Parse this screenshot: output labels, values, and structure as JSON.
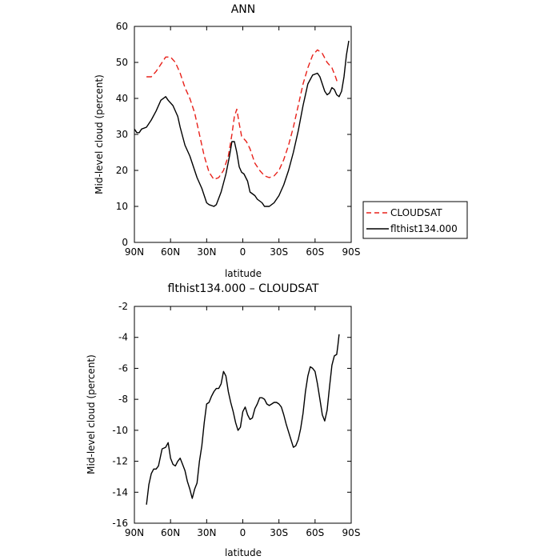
{
  "chart_data": [
    {
      "type": "line",
      "title": "ANN",
      "xlabel": "latitude",
      "ylabel": "Mid-level cloud (percent)",
      "xlim": [
        90,
        -90
      ],
      "ylim": [
        0,
        60
      ],
      "x_ticks": [
        90,
        60,
        30,
        0,
        -30,
        -60,
        -90
      ],
      "x_tick_labels": [
        "90N",
        "60N",
        "30N",
        "0",
        "30S",
        "60S",
        "90S"
      ],
      "y_ticks": [
        0,
        10,
        20,
        30,
        40,
        50,
        60
      ],
      "y_tick_labels": [
        "0",
        "10",
        "20",
        "30",
        "40",
        "50",
        "60"
      ],
      "legend_placement": "right",
      "series": [
        {
          "name": "CLOUDSAT",
          "color": "#e8211a",
          "dash": "dashed",
          "points": [
            [
              80,
              46
            ],
            [
              76,
              46
            ],
            [
              72,
              47.5
            ],
            [
              68,
              49.5
            ],
            [
              64,
              51.5
            ],
            [
              60,
              51.5
            ],
            [
              56,
              50
            ],
            [
              52,
              47
            ],
            [
              48,
              43
            ],
            [
              44,
              40
            ],
            [
              40,
              36
            ],
            [
              36,
              30
            ],
            [
              32,
              24
            ],
            [
              28,
              19.5
            ],
            [
              24,
              17.5
            ],
            [
              20,
              18
            ],
            [
              16,
              20
            ],
            [
              12,
              24
            ],
            [
              9,
              30
            ],
            [
              7,
              35
            ],
            [
              5,
              37
            ],
            [
              3,
              33
            ],
            [
              1,
              29.5
            ],
            [
              -3,
              28
            ],
            [
              -6,
              26
            ],
            [
              -10,
              22
            ],
            [
              -14,
              20
            ],
            [
              -18,
              18.5
            ],
            [
              -22,
              18
            ],
            [
              -26,
              18.5
            ],
            [
              -30,
              20
            ],
            [
              -34,
              23
            ],
            [
              -38,
              27
            ],
            [
              -42,
              32
            ],
            [
              -46,
              38
            ],
            [
              -50,
              44
            ],
            [
              -54,
              48.5
            ],
            [
              -58,
              52
            ],
            [
              -62,
              53.5
            ],
            [
              -66,
              52.5
            ],
            [
              -70,
              50
            ],
            [
              -74,
              48.5
            ],
            [
              -77,
              46
            ],
            [
              -79,
              44
            ]
          ]
        },
        {
          "name": "flthist134.000",
          "color": "#000000",
          "dash": "solid",
          "points": [
            [
              90,
              31.5
            ],
            [
              88,
              30.5
            ],
            [
              86,
              30.5
            ],
            [
              84,
              31.5
            ],
            [
              80,
              32
            ],
            [
              76,
              34
            ],
            [
              72,
              36.5
            ],
            [
              68,
              39.5
            ],
            [
              64,
              40.5
            ],
            [
              62,
              39.5
            ],
            [
              58,
              38
            ],
            [
              54,
              35
            ],
            [
              52,
              32
            ],
            [
              48,
              27
            ],
            [
              44,
              24
            ],
            [
              40,
              20
            ],
            [
              38,
              18
            ],
            [
              34,
              15
            ],
            [
              32,
              13
            ],
            [
              30,
              11
            ],
            [
              28,
              10.5
            ],
            [
              24,
              10
            ],
            [
              22,
              10.5
            ],
            [
              18,
              14
            ],
            [
              14,
              19
            ],
            [
              11,
              24
            ],
            [
              9,
              28
            ],
            [
              7,
              28
            ],
            [
              5,
              25
            ],
            [
              3,
              21
            ],
            [
              1,
              19.5
            ],
            [
              -1,
              19
            ],
            [
              -4,
              17
            ],
            [
              -6,
              14
            ],
            [
              -10,
              13
            ],
            [
              -12,
              12
            ],
            [
              -16,
              11
            ],
            [
              -18,
              10
            ],
            [
              -22,
              10
            ],
            [
              -26,
              11
            ],
            [
              -30,
              13
            ],
            [
              -34,
              16
            ],
            [
              -38,
              20
            ],
            [
              -42,
              25
            ],
            [
              -46,
              31
            ],
            [
              -50,
              38
            ],
            [
              -54,
              44
            ],
            [
              -58,
              46.5
            ],
            [
              -62,
              47
            ],
            [
              -64,
              46
            ],
            [
              -66,
              44
            ],
            [
              -68,
              42
            ],
            [
              -70,
              41
            ],
            [
              -72,
              41.5
            ],
            [
              -74,
              43
            ],
            [
              -76,
              42.5
            ],
            [
              -78,
              41
            ],
            [
              -80,
              40.5
            ],
            [
              -82,
              42
            ],
            [
              -84,
              46
            ],
            [
              -86,
              52
            ],
            [
              -88,
              56
            ]
          ]
        }
      ]
    },
    {
      "type": "line",
      "title": "flthist134.000 – CLOUDSAT",
      "xlabel": "latitude",
      "ylabel": "Mid-level cloud (percent)",
      "xlim": [
        90,
        -90
      ],
      "ylim": [
        -16,
        -2
      ],
      "x_ticks": [
        90,
        60,
        30,
        0,
        -30,
        -60,
        -90
      ],
      "x_tick_labels": [
        "90N",
        "60N",
        "30N",
        "0",
        "30S",
        "60S",
        "90S"
      ],
      "y_ticks": [
        -16,
        -14,
        -12,
        -10,
        -8,
        -6,
        -4,
        -2
      ],
      "y_tick_labels": [
        "-16",
        "-14",
        "-12",
        "-10",
        "-8",
        "-6",
        "-4",
        "-2"
      ],
      "series": [
        {
          "name": "",
          "color": "#000000",
          "dash": "solid",
          "points": [
            [
              80,
              -14.8
            ],
            [
              78,
              -13.5
            ],
            [
              76,
              -12.8
            ],
            [
              74,
              -12.5
            ],
            [
              72,
              -12.5
            ],
            [
              70,
              -12.3
            ],
            [
              67,
              -11.2
            ],
            [
              64,
              -11.1
            ],
            [
              62,
              -10.8
            ],
            [
              60,
              -11.8
            ],
            [
              58,
              -12.2
            ],
            [
              56,
              -12.3
            ],
            [
              54,
              -12
            ],
            [
              52,
              -11.8
            ],
            [
              50,
              -12.2
            ],
            [
              48,
              -12.6
            ],
            [
              46,
              -13.3
            ],
            [
              44,
              -13.8
            ],
            [
              42,
              -14.4
            ],
            [
              40,
              -13.8
            ],
            [
              38,
              -13.4
            ],
            [
              36,
              -12
            ],
            [
              34,
              -11
            ],
            [
              32,
              -9.5
            ],
            [
              30,
              -8.3
            ],
            [
              28,
              -8.2
            ],
            [
              26,
              -7.8
            ],
            [
              24,
              -7.5
            ],
            [
              22,
              -7.3
            ],
            [
              20,
              -7.3
            ],
            [
              18,
              -7
            ],
            [
              16,
              -6.2
            ],
            [
              14,
              -6.5
            ],
            [
              12,
              -7.5
            ],
            [
              10,
              -8.2
            ],
            [
              8,
              -8.8
            ],
            [
              6,
              -9.5
            ],
            [
              4,
              -10
            ],
            [
              2,
              -9.8
            ],
            [
              0,
              -8.8
            ],
            [
              -2,
              -8.5
            ],
            [
              -4,
              -9
            ],
            [
              -6,
              -9.3
            ],
            [
              -8,
              -9.2
            ],
            [
              -10,
              -8.6
            ],
            [
              -12,
              -8.3
            ],
            [
              -14,
              -7.9
            ],
            [
              -16,
              -7.9
            ],
            [
              -18,
              -8
            ],
            [
              -20,
              -8.3
            ],
            [
              -22,
              -8.4
            ],
            [
              -24,
              -8.3
            ],
            [
              -26,
              -8.2
            ],
            [
              -28,
              -8.2
            ],
            [
              -30,
              -8.3
            ],
            [
              -32,
              -8.5
            ],
            [
              -34,
              -9
            ],
            [
              -36,
              -9.6
            ],
            [
              -38,
              -10.1
            ],
            [
              -40,
              -10.6
            ],
            [
              -42,
              -11.1
            ],
            [
              -44,
              -11
            ],
            [
              -46,
              -10.6
            ],
            [
              -48,
              -9.9
            ],
            [
              -50,
              -8.9
            ],
            [
              -52,
              -7.5
            ],
            [
              -54,
              -6.5
            ],
            [
              -56,
              -5.9
            ],
            [
              -58,
              -6
            ],
            [
              -60,
              -6.2
            ],
            [
              -62,
              -7
            ],
            [
              -64,
              -8
            ],
            [
              -66,
              -9
            ],
            [
              -68,
              -9.4
            ],
            [
              -70,
              -8.7
            ],
            [
              -72,
              -7.2
            ],
            [
              -74,
              -5.8
            ],
            [
              -76,
              -5.2
            ],
            [
              -78,
              -5.1
            ],
            [
              -79,
              -4.5
            ],
            [
              -80,
              -3.8
            ]
          ]
        }
      ]
    }
  ]
}
